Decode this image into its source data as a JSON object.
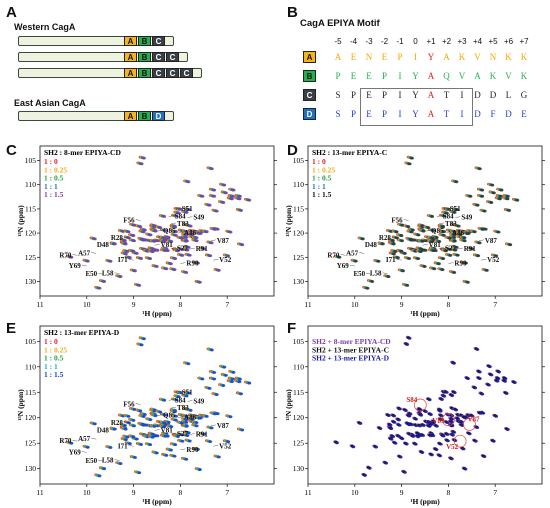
{
  "panel_a": {
    "label": "A",
    "western_title": "Western CagA",
    "east_asian_title": "East Asian CagA",
    "western_rows": [
      [
        "A",
        "B",
        "C"
      ],
      [
        "A",
        "B",
        "C",
        "C"
      ],
      [
        "A",
        "B",
        "C",
        "C",
        "C"
      ]
    ],
    "east_asian_rows": [
      [
        "A",
        "B",
        "D"
      ]
    ]
  },
  "panel_b": {
    "label": "B",
    "title": "CagA EPIYA Motif",
    "positions": [
      "-5",
      "-4",
      "-3",
      "-2",
      "-1",
      "0",
      "+1",
      "+2",
      "+3",
      "+4",
      "+5",
      "+6",
      "+7"
    ],
    "motifs": [
      {
        "key": "A",
        "seq": [
          "A",
          "E",
          "N",
          "E",
          "P",
          "I",
          "Y",
          "A",
          "K",
          "V",
          "N",
          "K",
          "K"
        ]
      },
      {
        "key": "B",
        "seq": [
          "P",
          "E",
          "E",
          "P",
          "I",
          "Y",
          "A",
          "Q",
          "V",
          "A",
          "K",
          "V",
          "K"
        ]
      },
      {
        "key": "C",
        "seq": [
          "S",
          "P",
          "E",
          "P",
          "I",
          "Y",
          "A",
          "T",
          "I",
          "D",
          "D",
          "L",
          "G"
        ]
      },
      {
        "key": "D",
        "seq": [
          "S",
          "P",
          "E",
          "P",
          "I",
          "Y",
          "A",
          "T",
          "I",
          "D",
          "F",
          "D",
          "E"
        ]
      }
    ]
  },
  "colors": {
    "A": "#f4b41a",
    "B": "#22b14c",
    "C": "#3a3f45",
    "D": "#1f6fc4",
    "red": "#e02020",
    "orange": "#f4a81a",
    "green": "#22a040",
    "purple": "#7b3fb0",
    "blue": "#1f5fd0",
    "black": "#111111",
    "navy": "#1a1aa6"
  },
  "axes": {
    "x_label": "¹H (ppm)",
    "y_label": "¹⁵N (ppm)",
    "x_ticks": [
      "11",
      "10",
      "9",
      "8",
      "7"
    ],
    "y_ticks": [
      "105",
      "110",
      "115",
      "120",
      "125",
      "130"
    ]
  },
  "panel_c": {
    "label": "C",
    "title": "SH2 : 8-mer EPIYA-CD",
    "legend": [
      {
        "text": "1 : 0",
        "color": "#e02020"
      },
      {
        "text": "1 : 0.25",
        "color": "#f4a81a"
      },
      {
        "text": "1 : 0.5",
        "color": "#22a040"
      },
      {
        "text": "1 : 1",
        "color": "#1f6fc4"
      },
      {
        "text": "1 : 1.5",
        "color": "#7b3fb0"
      }
    ]
  },
  "panel_d": {
    "label": "D",
    "title": "SH2 : 13-mer EPIYA-C",
    "legend": [
      {
        "text": "1 : 0",
        "color": "#e02020"
      },
      {
        "text": "1 : 0.25",
        "color": "#f4a81a"
      },
      {
        "text": "1 : 0.5",
        "color": "#22a040"
      },
      {
        "text": "1 : 1",
        "color": "#1f6fc4"
      },
      {
        "text": "1 : 1.5",
        "color": "#111111"
      }
    ]
  },
  "panel_e": {
    "label": "E",
    "title": "SH2 : 13-mer EPIYA-D",
    "legend": [
      {
        "text": "1 : 0",
        "color": "#e02020"
      },
      {
        "text": "1 : 0.25",
        "color": "#f4a81a"
      },
      {
        "text": "1 : 0.5",
        "color": "#22a040"
      },
      {
        "text": "1 : 1",
        "color": "#17b0c8"
      },
      {
        "text": "1 : 1.5",
        "color": "#1f3fd0"
      }
    ]
  },
  "panel_f": {
    "label": "F",
    "legend": [
      {
        "text": "SH2 + 8-mer EPIYA-CD",
        "color": "#7b3fb0"
      },
      {
        "text": "SH2 + 13-mer EPIYA-C",
        "color": "#111111"
      },
      {
        "text": "SH2 + 13-mer EPIYA-D",
        "color": "#1a1aa6"
      }
    ],
    "highlighted": [
      "S84",
      "V87",
      "V89",
      "V52"
    ]
  },
  "residue_labels": [
    "S51",
    "S84",
    "S49",
    "T83",
    "F56",
    "Q85",
    "R28",
    "A86",
    "D48",
    "V81",
    "S27",
    "R91",
    "R70",
    "A57",
    "I71",
    "V52",
    "Y69",
    "L58",
    "R90",
    "E50",
    "V87",
    "F78"
  ],
  "chart_data": [
    {
      "type": "scatter",
      "title": "SH2 : 8-mer EPIYA-CD",
      "xlabel": "¹H (ppm)",
      "ylabel": "¹⁵N (ppm)",
      "xlim": [
        11,
        6
      ],
      "ylim": [
        133,
        102
      ],
      "labeled_peaks": [
        {
          "label": "S51",
          "x": 8.1,
          "y": 115.0
        },
        {
          "label": "S84",
          "x": 8.25,
          "y": 116.6
        },
        {
          "label": "S49",
          "x": 7.85,
          "y": 116.8
        },
        {
          "label": "T83",
          "x": 8.2,
          "y": 118.1
        },
        {
          "label": "F56",
          "x": 8.85,
          "y": 117.4
        },
        {
          "label": "Q85",
          "x": 8.5,
          "y": 119.6
        },
        {
          "label": "A86",
          "x": 8.05,
          "y": 120.0
        },
        {
          "label": "R28",
          "x": 9.1,
          "y": 121.0
        },
        {
          "label": "D48",
          "x": 9.4,
          "y": 122.5
        },
        {
          "label": "V81",
          "x": 8.55,
          "y": 122.5
        },
        {
          "label": "S27",
          "x": 8.2,
          "y": 123.2
        },
        {
          "label": "R91",
          "x": 7.8,
          "y": 123.3
        },
        {
          "label": "V87",
          "x": 7.35,
          "y": 121.6
        },
        {
          "label": "R70",
          "x": 10.2,
          "y": 124.6
        },
        {
          "label": "A57",
          "x": 9.8,
          "y": 124.2
        },
        {
          "label": "I71",
          "x": 9.0,
          "y": 125.6
        },
        {
          "label": "V52",
          "x": 7.3,
          "y": 125.6
        },
        {
          "label": "Y69",
          "x": 10.0,
          "y": 126.8
        },
        {
          "label": "R90",
          "x": 8.0,
          "y": 126.3
        },
        {
          "label": "E50",
          "x": 9.65,
          "y": 128.5
        },
        {
          "label": "L58",
          "x": 9.3,
          "y": 128.4
        }
      ]
    },
    {
      "type": "scatter",
      "title": "SH2 : 13-mer EPIYA-C",
      "xlabel": "¹H (ppm)",
      "ylabel": "¹⁵N (ppm)",
      "xlim": [
        11,
        6
      ],
      "ylim": [
        133,
        102
      ]
    },
    {
      "type": "scatter",
      "title": "SH2 : 13-mer EPIYA-D",
      "xlabel": "¹H (ppm)",
      "ylabel": "¹⁵N (ppm)",
      "xlim": [
        11,
        6
      ],
      "ylim": [
        133,
        102
      ]
    },
    {
      "type": "scatter",
      "title": "",
      "xlabel": "¹H (ppm)",
      "ylabel": "¹⁵N (ppm)",
      "xlim": [
        11,
        6
      ],
      "ylim": [
        133,
        102
      ],
      "series": [
        {
          "name": "SH2 + 8-mer EPIYA-CD"
        },
        {
          "name": "SH2 + 13-mer EPIYA-C"
        },
        {
          "name": "SH2 + 13-mer EPIYA-D"
        }
      ]
    }
  ]
}
